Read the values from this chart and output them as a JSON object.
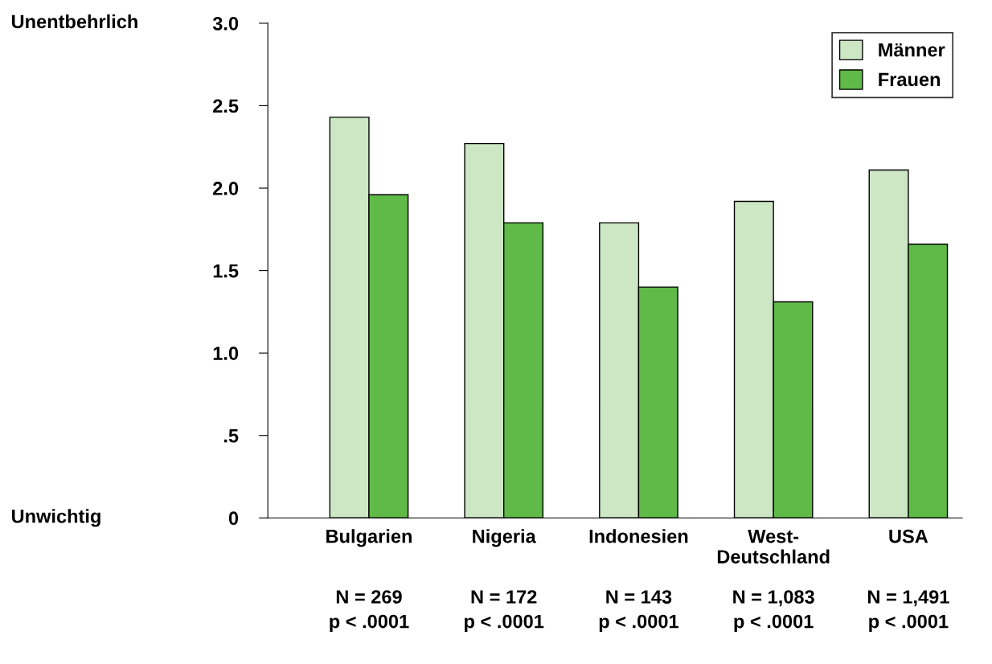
{
  "chart_data": {
    "type": "bar",
    "categories": [
      "Bulgarien",
      "Nigeria",
      "Indonesien",
      "West-\nDeutschland",
      "USA"
    ],
    "series": [
      {
        "name": "Männer",
        "color": "#cde6c4",
        "values": [
          2.43,
          2.27,
          1.79,
          1.92,
          2.11
        ]
      },
      {
        "name": "Frauen",
        "color": "#5fba47",
        "values": [
          1.96,
          1.79,
          1.4,
          1.31,
          1.66
        ]
      }
    ],
    "ylim": [
      0,
      3.0
    ],
    "yticks": [
      0,
      {
        "value": 0.5,
        "label": ".5"
      },
      {
        "value": 1.0,
        "label": "1.0"
      },
      1.5,
      {
        "value": 2.0,
        "label": "2.0"
      },
      2.5,
      {
        "value": 3.0,
        "label": "3.0"
      }
    ],
    "annotations": [
      "Unentbehrlich",
      "Unwichtig",
      "N = 269\np < .0001",
      "N = 172\np < .0001",
      "N = 143\np < .0001",
      "N = 1,083\np < .0001",
      "N = 1,491\np < .0001"
    ],
    "legend": "top right",
    "grid": false
  }
}
